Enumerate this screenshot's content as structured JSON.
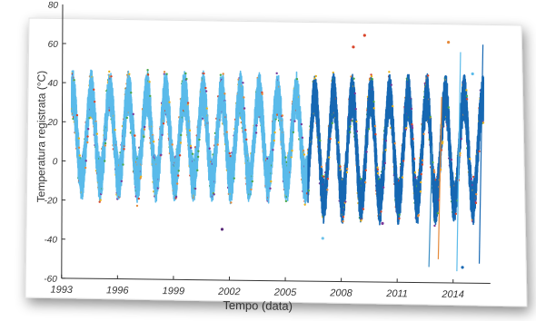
{
  "chart_data": {
    "type": "scatter",
    "title": "",
    "xlabel": "Tempo (data)",
    "ylabel": "Temperatura registrata (°C)",
    "xlim": [
      1993,
      2016
    ],
    "ylim": [
      -60,
      80
    ],
    "x_ticks": [
      "1993",
      "1996",
      "1999",
      "2002",
      "2005",
      "2008",
      "2011",
      "2014"
    ],
    "x_tick_values": [
      1993,
      1996,
      1999,
      2002,
      2005,
      2008,
      2011,
      2014
    ],
    "y_ticks": [
      "-60",
      "-40",
      "-20",
      "0",
      "20",
      "40",
      "60"
    ],
    "y_tick_values": [
      -60,
      -40,
      -20,
      0,
      20,
      40,
      60
    ],
    "y_top_label": "80",
    "grid": false,
    "series": [
      {
        "color": "#5bbbea",
        "x_range": [
          1993.5,
          2006.2
        ],
        "seasonal_mean": 13,
        "seasonal_amplitude": 22,
        "approx_min": -10,
        "approx_max": 36
      },
      {
        "color": "#1768b3",
        "x_range": [
          2006.2,
          2015.6
        ],
        "seasonal_mean": 8,
        "seasonal_amplitude": 27,
        "approx_min": -24,
        "approx_max": 36
      }
    ],
    "outliers": [
      {
        "x": 2001.6,
        "y": -34,
        "color": "#5a2a7a"
      },
      {
        "x": 2009.2,
        "y": 66,
        "color": "#d9452b"
      },
      {
        "x": 2008.6,
        "y": 60,
        "color": "#d9452b"
      },
      {
        "x": 2007.0,
        "y": -38,
        "color": "#6fc3ea"
      },
      {
        "x": 2010.2,
        "y": -30,
        "color": "#7a3a9a"
      },
      {
        "x": 2013.7,
        "y": 63,
        "color": "#e58a3b"
      },
      {
        "x": 2014.5,
        "y": -52,
        "color": "#1768b3"
      },
      {
        "x": 2015.0,
        "y": 47,
        "color": "#5bbbea"
      }
    ],
    "spikes": [
      {
        "x": 2012.7,
        "y1": -52,
        "y2": 10,
        "color": "#3b8ec4"
      },
      {
        "x": 2013.2,
        "y1": -48,
        "y2": 35,
        "color": "#e58a3b"
      },
      {
        "x": 2014.2,
        "y1": -54,
        "y2": 58,
        "color": "#5bbbea"
      },
      {
        "x": 2015.4,
        "y1": -50,
        "y2": 62,
        "color": "#1768b3"
      }
    ]
  }
}
